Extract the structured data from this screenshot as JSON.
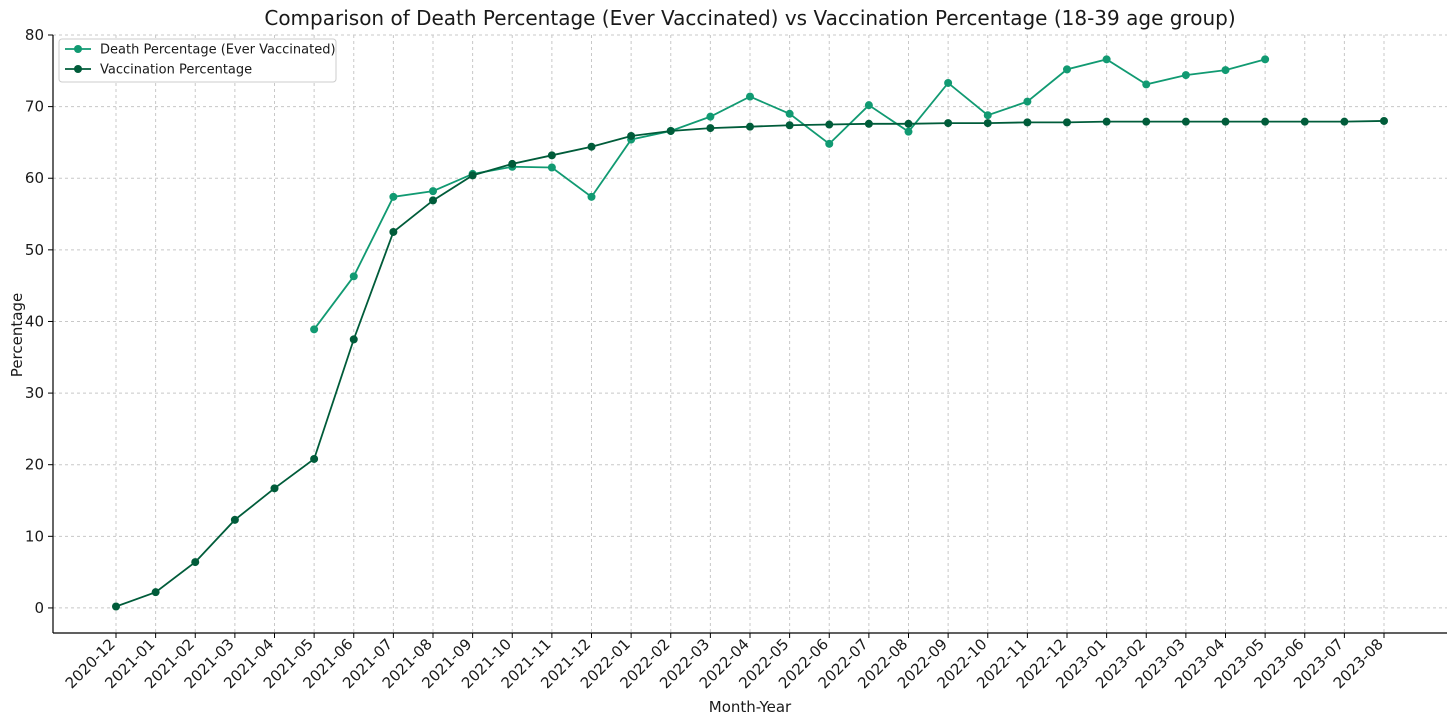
{
  "chart_data": {
    "type": "line",
    "title": "Comparison of Death Percentage (Ever Vaccinated) vs Vaccination Percentage (18-39 age group)",
    "xlabel": "Month-Year",
    "ylabel": "Percentage",
    "ylim": [
      -3.5,
      80
    ],
    "yticks": [
      0,
      10,
      20,
      30,
      40,
      50,
      60,
      70,
      80
    ],
    "grid": true,
    "legend_position": "top-left",
    "categories": [
      "2020-12",
      "2021-01",
      "2021-02",
      "2021-03",
      "2021-04",
      "2021-05",
      "2021-06",
      "2021-07",
      "2021-08",
      "2021-09",
      "2021-10",
      "2021-11",
      "2021-12",
      "2022-01",
      "2022-02",
      "2022-03",
      "2022-04",
      "2022-05",
      "2022-06",
      "2022-07",
      "2022-08",
      "2022-09",
      "2022-10",
      "2022-11",
      "2022-12",
      "2023-01",
      "2023-02",
      "2023-03",
      "2023-04",
      "2023-05",
      "2023-06",
      "2023-07",
      "2023-08"
    ],
    "series": [
      {
        "name": "Death Percentage (Ever Vaccinated)",
        "color": "#119a72",
        "values": [
          null,
          null,
          null,
          null,
          null,
          38.9,
          46.3,
          57.4,
          58.2,
          60.6,
          61.6,
          61.5,
          57.4,
          65.4,
          66.6,
          68.6,
          71.4,
          69.0,
          64.8,
          70.2,
          66.5,
          73.3,
          68.8,
          70.7,
          75.2,
          76.6,
          73.1,
          74.4,
          75.1,
          76.6,
          null,
          null,
          null
        ]
      },
      {
        "name": "Vaccination Percentage",
        "color": "#005c3a",
        "values": [
          0.2,
          2.2,
          6.4,
          12.3,
          16.7,
          20.8,
          37.5,
          52.5,
          56.9,
          60.4,
          62.0,
          63.2,
          64.4,
          65.9,
          66.6,
          67.0,
          67.2,
          67.4,
          67.5,
          67.6,
          67.6,
          67.7,
          67.7,
          67.8,
          67.8,
          67.9,
          67.9,
          67.9,
          67.9,
          67.9,
          67.9,
          67.9,
          68.0
        ]
      }
    ]
  }
}
